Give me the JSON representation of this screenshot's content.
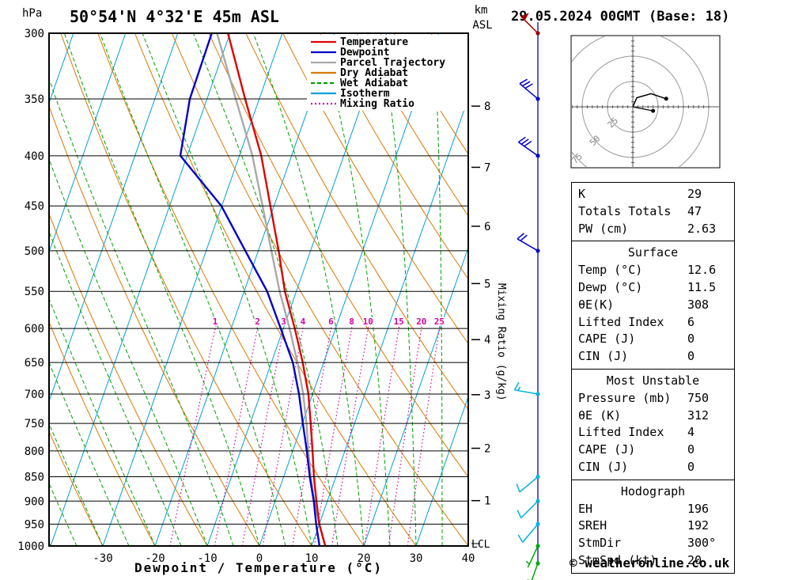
{
  "header": {
    "station": "50°54'N 4°32'E 45m ASL",
    "datetime": "29.05.2024 00GMT (Base: 18)",
    "pressure_unit": "hPa"
  },
  "axes": {
    "km_label_1": "km",
    "km_label_2": "ASL",
    "xlabel": "Dewpoint / Temperature (°C)",
    "right_label": "Mixing Ratio (g/kg)",
    "lcl_label": "LCL",
    "pressure_ticks": [
      300,
      350,
      400,
      450,
      500,
      550,
      600,
      650,
      700,
      750,
      800,
      850,
      900,
      950,
      1000
    ],
    "temp_ticks": [
      -30,
      -20,
      -10,
      0,
      10,
      20,
      30,
      40
    ],
    "km_ticks": [
      1,
      2,
      3,
      4,
      5,
      6,
      7,
      8
    ],
    "mixing_ratio_values": [
      1,
      2,
      3,
      4,
      6,
      8,
      10,
      15,
      20,
      25
    ]
  },
  "legend": [
    {
      "label": "Temperature",
      "color": "#e00000",
      "style": "solid"
    },
    {
      "label": "Dewpoint",
      "color": "#0000cc",
      "style": "solid"
    },
    {
      "label": "Parcel Trajectory",
      "color": "#a8a8a8",
      "style": "solid"
    },
    {
      "label": "Dry Adiabat",
      "color": "#dd7700",
      "style": "solid"
    },
    {
      "label": "Wet Adiabat",
      "color": "#00a000",
      "style": "dashed"
    },
    {
      "label": "Isotherm",
      "color": "#00a0d8",
      "style": "solid"
    },
    {
      "label": "Mixing Ratio",
      "color": "#d8009d",
      "style": "dotted"
    }
  ],
  "colors": {
    "isotherm": "#00a0d8",
    "dry_adiabat": "#dd7700",
    "wet_adiabat": "#00a000",
    "mixing_ratio": "#d8009d",
    "temperature": "#e00000",
    "dewpoint": "#0000cc",
    "parcel": "#a8a8a8",
    "grid": "#000000",
    "barb_axis": "#0000cc",
    "hodograph_ring": "#9a9a9a"
  },
  "chart_data": {
    "type": "line",
    "title": "Skew-T log-P sounding 50°54'N 4°32'E 45m ASL 29.05.2024 00GMT",
    "x_axis": "Dewpoint / Temperature (°C)",
    "y_axis": "Pressure (hPa)",
    "x_range": [
      -40,
      40
    ],
    "y_range": [
      1000,
      300
    ],
    "pressure_hpa": [
      1000,
      950,
      900,
      850,
      800,
      750,
      700,
      650,
      600,
      550,
      500,
      450,
      400,
      350,
      300
    ],
    "series": [
      {
        "name": "Temperature",
        "color": "#e00000",
        "values": [
          12.6,
          10.0,
          7.9,
          5.8,
          3.8,
          1.6,
          -0.8,
          -4.0,
          -7.8,
          -12.2,
          -16.1,
          -20.7,
          -25.8,
          -32.7,
          -40.4
        ]
      },
      {
        "name": "Dewpoint",
        "color": "#0000cc",
        "values": [
          11.5,
          9.4,
          7.4,
          5.0,
          2.7,
          0.1,
          -2.6,
          -5.9,
          -10.5,
          -15.6,
          -22.5,
          -30.1,
          -41.3,
          -43.3,
          -43.5
        ]
      },
      {
        "name": "Parcel Trajectory",
        "color": "#a8a8a8",
        "values": [
          12.6,
          10.0,
          7.5,
          5.2,
          3.0,
          0.8,
          -1.8,
          -5.0,
          -8.8,
          -13.2,
          -17.5,
          -22.2,
          -27.5,
          -34.5,
          -42.5
        ]
      }
    ],
    "wind_barbs": [
      {
        "p": 300,
        "speed": 50,
        "dir": 315,
        "color": "#990000"
      },
      {
        "p": 350,
        "speed": 30,
        "dir": 310,
        "color": "#0000cc"
      },
      {
        "p": 400,
        "speed": 30,
        "dir": 305,
        "color": "#0000cc"
      },
      {
        "p": 500,
        "speed": 20,
        "dir": 300,
        "color": "#0000cc"
      },
      {
        "p": 700,
        "speed": 15,
        "dir": 280,
        "color": "#00b0e0"
      },
      {
        "p": 850,
        "speed": 10,
        "dir": 230,
        "color": "#00b0e0"
      },
      {
        "p": 900,
        "speed": 10,
        "dir": 225,
        "color": "#00b0e0"
      },
      {
        "p": 950,
        "speed": 10,
        "dir": 220,
        "color": "#00b0e0"
      },
      {
        "p": 1000,
        "speed": 5,
        "dir": 205,
        "color": "#00aa00"
      },
      {
        "p": "sfc",
        "speed": 5,
        "dir": 200,
        "color": "#00aa00"
      }
    ]
  },
  "hodograph": {
    "unit_label": "kt",
    "ring_labels": [
      "25",
      "50",
      "75"
    ],
    "ring_step_kt": 25,
    "trace_kt": [
      [
        0,
        0
      ],
      [
        4,
        9
      ],
      [
        18,
        13
      ],
      [
        33,
        8
      ]
    ],
    "branch_kt": [
      [
        0,
        0
      ],
      [
        20,
        -4
      ]
    ],
    "dots_kt": [
      [
        20,
        -4
      ],
      [
        33,
        8
      ]
    ]
  },
  "table": {
    "sections": [
      {
        "title": null,
        "rows": [
          [
            "K",
            "29"
          ],
          [
            "Totals Totals",
            "47"
          ],
          [
            "PW (cm)",
            "2.63"
          ]
        ]
      },
      {
        "title": "Surface",
        "rows": [
          [
            "Temp (°C)",
            "12.6"
          ],
          [
            "Dewp (°C)",
            "11.5"
          ],
          [
            "θE(K)",
            "308"
          ],
          [
            "Lifted Index",
            "6"
          ],
          [
            "CAPE (J)",
            "0"
          ],
          [
            "CIN (J)",
            "0"
          ]
        ]
      },
      {
        "title": "Most Unstable",
        "rows": [
          [
            "Pressure (mb)",
            "750"
          ],
          [
            "θE (K)",
            "312"
          ],
          [
            "Lifted Index",
            "4"
          ],
          [
            "CAPE (J)",
            "0"
          ],
          [
            "CIN (J)",
            "0"
          ]
        ]
      },
      {
        "title": "Hodograph",
        "rows": [
          [
            "EH",
            "196"
          ],
          [
            "SREH",
            "192"
          ],
          [
            "StmDir",
            "300°"
          ],
          [
            "StmSpd (kt)",
            "20"
          ]
        ]
      }
    ]
  },
  "footer": {
    "copyright": "© weatheronline.co.uk"
  }
}
